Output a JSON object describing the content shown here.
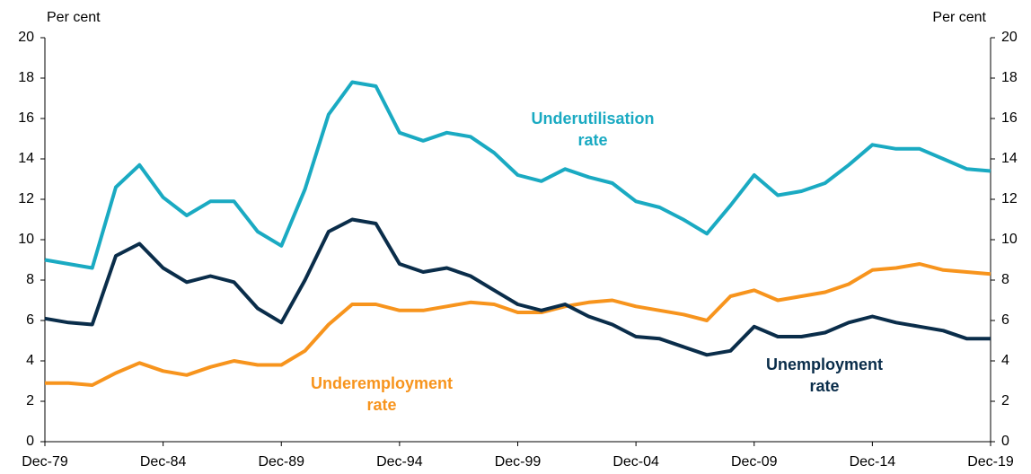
{
  "chart_data": {
    "type": "line",
    "y_label": "Per cent",
    "y2_label": "Per cent",
    "categories": [
      "Dec-79",
      null,
      null,
      null,
      null,
      "Dec-84",
      null,
      null,
      null,
      null,
      "Dec-89",
      null,
      null,
      null,
      null,
      "Dec-94",
      null,
      null,
      null,
      null,
      "Dec-99",
      null,
      null,
      null,
      null,
      "Dec-04",
      null,
      null,
      null,
      null,
      "Dec-09",
      null,
      null,
      null,
      null,
      "Dec-14",
      null,
      null,
      null,
      null,
      "Dec-19"
    ],
    "ylim": [
      0,
      20
    ],
    "yticks": [
      0,
      2,
      4,
      6,
      8,
      10,
      12,
      14,
      16,
      18,
      20
    ],
    "y2lim": [
      0,
      20
    ],
    "y2ticks": [
      0,
      2,
      4,
      6,
      8,
      10,
      12,
      14,
      16,
      18,
      20
    ],
    "grid": false,
    "series": [
      {
        "label_lines": [
          "Underutilisation",
          "rate"
        ],
        "color": "#1aaac2",
        "values": [
          9.0,
          8.8,
          8.6,
          12.6,
          13.7,
          12.1,
          11.2,
          11.9,
          11.9,
          10.4,
          9.7,
          12.5,
          16.2,
          17.8,
          17.6,
          15.3,
          14.9,
          15.3,
          15.1,
          14.3,
          13.2,
          12.9,
          13.5,
          13.1,
          12.8,
          11.9,
          11.6,
          11.0,
          10.3,
          11.7,
          13.2,
          12.2,
          12.4,
          12.8,
          13.7,
          14.7,
          14.5,
          14.5,
          14.0,
          13.5,
          13.4
        ]
      },
      {
        "label_lines": [
          "Underemployment",
          "rate"
        ],
        "color": "#f7941d",
        "values": [
          2.9,
          2.9,
          2.8,
          3.4,
          3.9,
          3.5,
          3.3,
          3.7,
          4.0,
          3.8,
          3.8,
          4.5,
          5.8,
          6.8,
          6.8,
          6.5,
          6.5,
          6.7,
          6.9,
          6.8,
          6.4,
          6.4,
          6.7,
          6.9,
          7.0,
          6.7,
          6.5,
          6.3,
          6.0,
          7.2,
          7.5,
          7.0,
          7.2,
          7.4,
          7.8,
          8.5,
          8.6,
          8.8,
          8.5,
          8.4,
          8.3
        ]
      },
      {
        "label_lines": [
          "Unemployment",
          "rate"
        ],
        "color": "#0a2d4a",
        "values": [
          6.1,
          5.9,
          5.8,
          9.2,
          9.8,
          8.6,
          7.9,
          8.2,
          7.9,
          6.6,
          5.9,
          8.0,
          10.4,
          11.0,
          10.8,
          8.8,
          8.4,
          8.6,
          8.2,
          7.5,
          6.8,
          6.5,
          6.8,
          6.2,
          5.8,
          5.2,
          5.1,
          4.7,
          4.3,
          4.5,
          5.7,
          5.2,
          5.2,
          5.4,
          5.9,
          6.2,
          5.9,
          5.7,
          5.5,
          5.1,
          5.1
        ]
      }
    ]
  }
}
